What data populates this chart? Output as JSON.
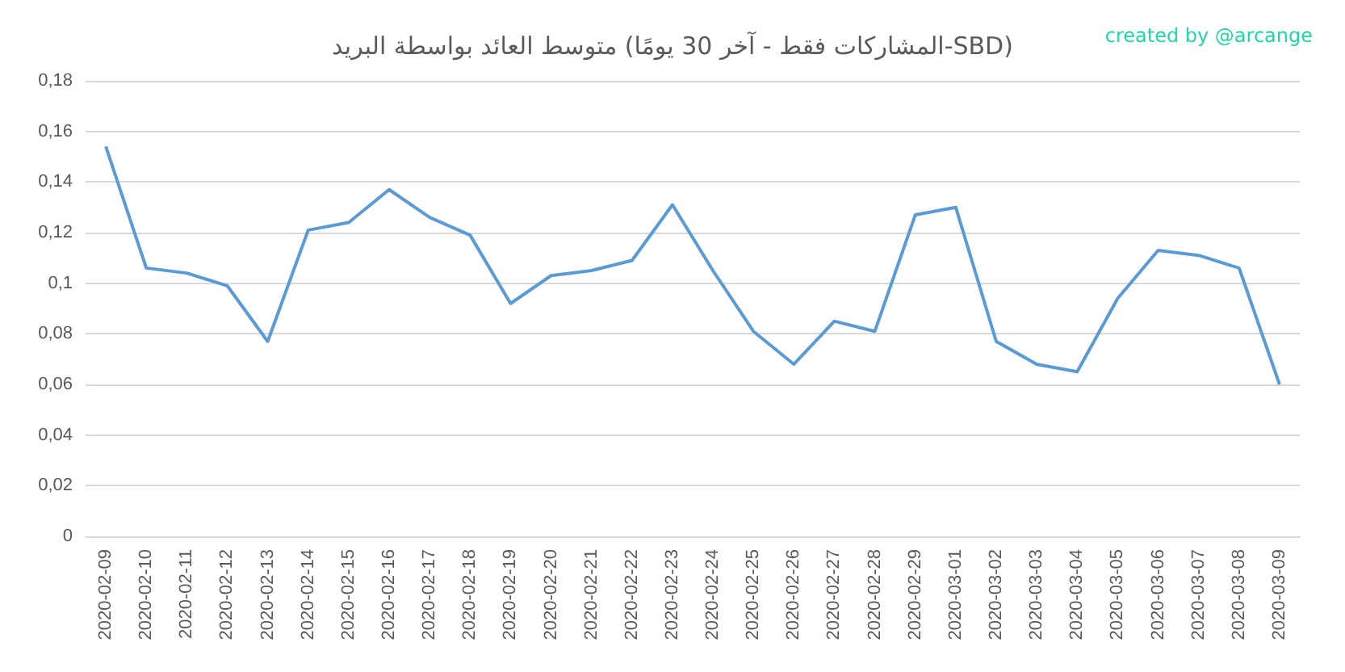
{
  "chart_data": {
    "type": "line",
    "title": "متوسط العائد بواسطة البريد (المشاركات فقط - آخر 30 يومًا-SBD)",
    "annotations": [
      "created by @arcange"
    ],
    "categories": [
      "2020-02-09",
      "2020-02-10",
      "2020-02-11",
      "2020-02-12",
      "2020-02-13",
      "2020-02-14",
      "2020-02-15",
      "2020-02-16",
      "2020-02-17",
      "2020-02-18",
      "2020-02-19",
      "2020-02-20",
      "2020-02-21",
      "2020-02-22",
      "2020-02-23",
      "2020-02-24",
      "2020-02-25",
      "2020-02-26",
      "2020-02-27",
      "2020-02-28",
      "2020-02-29",
      "2020-03-01",
      "2020-03-02",
      "2020-03-03",
      "2020-03-04",
      "2020-03-05",
      "2020-03-06",
      "2020-03-07",
      "2020-03-08",
      "2020-03-09"
    ],
    "series": [
      {
        "color": "#5b9bd5",
        "values": [
          0.154,
          0.106,
          0.104,
          0.099,
          0.077,
          0.121,
          0.124,
          0.137,
          0.126,
          0.119,
          0.092,
          0.103,
          0.105,
          0.109,
          0.131,
          0.105,
          0.081,
          0.068,
          0.085,
          0.081,
          0.127,
          0.13,
          0.077,
          0.068,
          0.065,
          0.094,
          0.113,
          0.111,
          0.106,
          0.06
        ]
      }
    ],
    "ylim": [
      0,
      0.18
    ],
    "yticks": [
      {
        "value": 0,
        "label": "0"
      },
      {
        "value": 0.02,
        "label": "0,02"
      },
      {
        "value": 0.04,
        "label": "0,04"
      },
      {
        "value": 0.06,
        "label": "0,06"
      },
      {
        "value": 0.08,
        "label": "0,08"
      },
      {
        "value": 0.1,
        "label": "0,1"
      },
      {
        "value": 0.12,
        "label": "0,12"
      },
      {
        "value": 0.14,
        "label": "0,14"
      },
      {
        "value": 0.16,
        "label": "0,16"
      },
      {
        "value": 0.18,
        "label": "0,18"
      }
    ],
    "grid": "y",
    "marker": "none",
    "line_style": "solid"
  }
}
